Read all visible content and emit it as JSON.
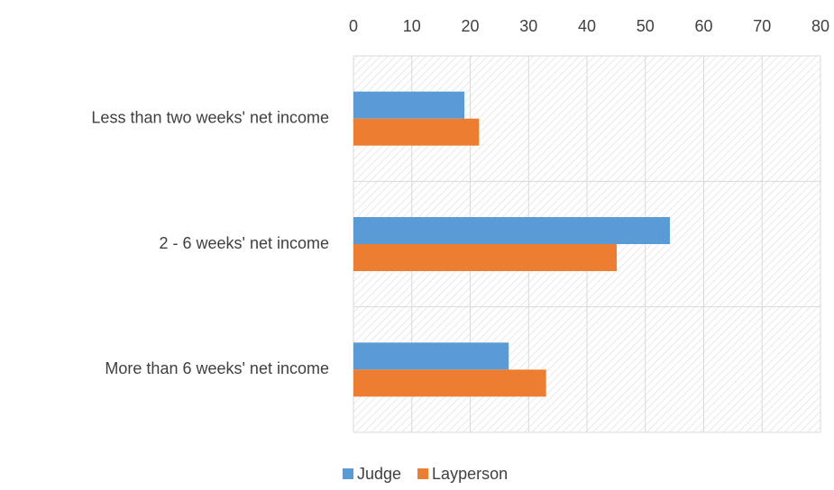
{
  "chart_data": {
    "type": "hbar",
    "categories": [
      "Less than two weeks' net income",
      "2 - 6 weeks' net income",
      "More than 6 weeks' net income"
    ],
    "series": [
      {
        "name": "Judge",
        "color": "#5b9bd5",
        "values": [
          19,
          54.2,
          26.6
        ]
      },
      {
        "name": "Layperson",
        "color": "#ed7d31",
        "values": [
          21.5,
          45.1,
          33
        ]
      }
    ],
    "xlim": [
      0,
      80
    ],
    "xticks": [
      0,
      10,
      20,
      30,
      40,
      50,
      60,
      70,
      80
    ],
    "grid": true,
    "legend": "bottom"
  }
}
